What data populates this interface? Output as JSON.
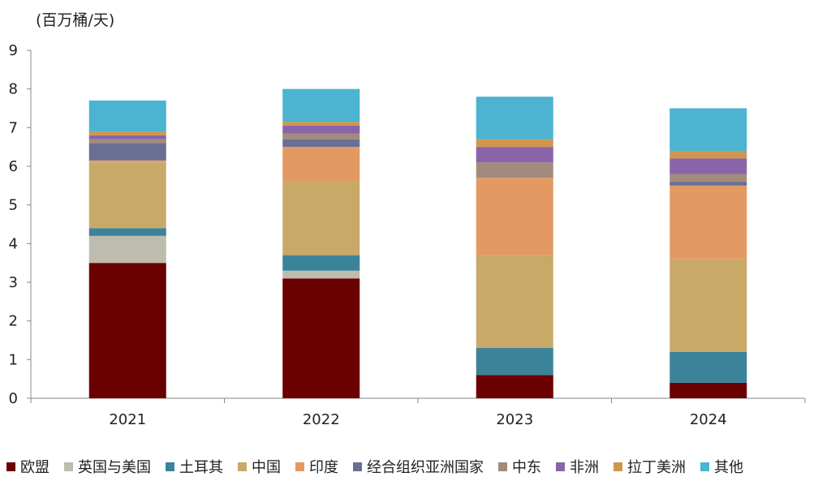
{
  "chart_data": {
    "type": "bar",
    "stacked": true,
    "unit_label": "(百万桶/天)",
    "categories": [
      "2021",
      "2022",
      "2023",
      "2024"
    ],
    "ylim": [
      0,
      9
    ],
    "yticks": [
      0,
      1,
      2,
      3,
      4,
      5,
      6,
      7,
      8,
      9
    ],
    "grid": false,
    "legend_position": "bottom",
    "series": [
      {
        "name": "欧盟",
        "color": "#6b0000",
        "values": [
          3.5,
          3.1,
          0.6,
          0.4
        ]
      },
      {
        "name": "英国与美国",
        "color": "#bdbcae",
        "values": [
          0.7,
          0.2,
          0.0,
          0.0
        ]
      },
      {
        "name": "土耳其",
        "color": "#3b8399",
        "values": [
          0.2,
          0.4,
          0.7,
          0.8
        ]
      },
      {
        "name": "中国",
        "color": "#c8a968",
        "values": [
          1.7,
          1.9,
          2.4,
          2.4
        ]
      },
      {
        "name": "印度",
        "color": "#e39a62",
        "values": [
          0.05,
          0.9,
          2.0,
          1.9
        ]
      },
      {
        "name": "经合组织亚洲国家",
        "color": "#6a6f94",
        "values": [
          0.45,
          0.2,
          0.0,
          0.1
        ]
      },
      {
        "name": "中东",
        "color": "#a28b7c",
        "values": [
          0.1,
          0.15,
          0.4,
          0.2
        ]
      },
      {
        "name": "非洲",
        "color": "#8a64a8",
        "values": [
          0.1,
          0.2,
          0.4,
          0.4
        ]
      },
      {
        "name": "拉丁美洲",
        "color": "#cf9650",
        "values": [
          0.1,
          0.1,
          0.2,
          0.2
        ]
      },
      {
        "name": "其他",
        "color": "#4cb3d0",
        "values": [
          0.8,
          0.85,
          1.1,
          1.1
        ]
      }
    ]
  }
}
